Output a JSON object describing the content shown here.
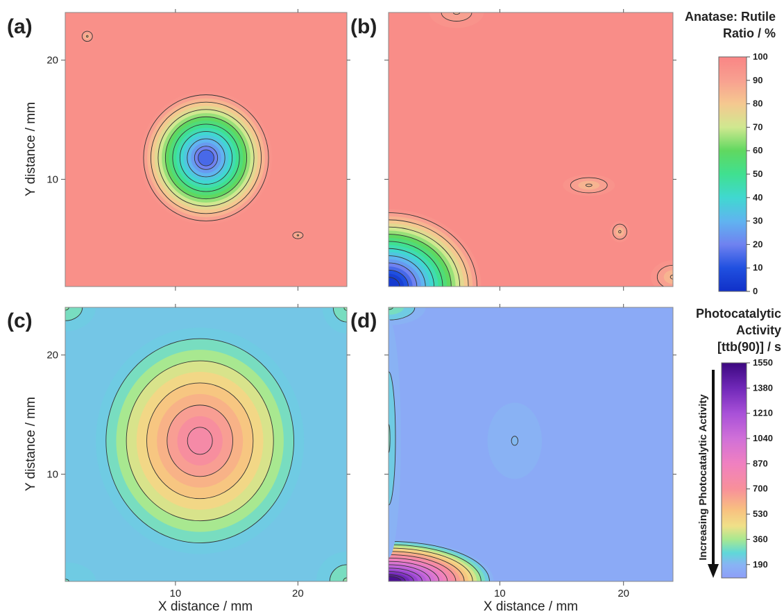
{
  "chart_data": [
    {
      "type": "heatmap",
      "panel": "(a)",
      "xlabel": "",
      "ylabel": "Y distance / mm",
      "xlim": [
        1,
        24
      ],
      "ylim": [
        1,
        24
      ],
      "x_ticks": [
        10,
        20
      ],
      "y_ticks": [
        10,
        20
      ],
      "scale": "anatase",
      "background_value": 96,
      "features": [
        {
          "cx": 12.5,
          "cy": 11.8,
          "rx": 5.4,
          "ry": 5.6,
          "min_value": 15
        },
        {
          "cx": 2.8,
          "cy": 22.0,
          "rx": 0.6,
          "ry": 0.6,
          "min_value": 82
        },
        {
          "cx": 20.0,
          "cy": 5.3,
          "rx": 0.6,
          "ry": 0.4,
          "min_value": 84
        }
      ]
    },
    {
      "type": "heatmap",
      "panel": "(b)",
      "xlabel": "",
      "ylabel": "",
      "xlim": [
        1,
        24
      ],
      "ylim": [
        1,
        24
      ],
      "x_ticks": [
        10,
        20
      ],
      "y_ticks": [
        10,
        20
      ],
      "scale": "anatase",
      "background_value": 97,
      "features": [
        {
          "cx": 1.0,
          "cy": 1.0,
          "rx": 7.5,
          "ry": 6.5,
          "min_value": 3
        },
        {
          "cx": 17.2,
          "cy": 9.5,
          "rx": 2.1,
          "ry": 0.9,
          "min_value": 84
        },
        {
          "cx": 6.5,
          "cy": 24.0,
          "rx": 2.2,
          "ry": 1.3,
          "min_value": 85
        },
        {
          "cx": 19.7,
          "cy": 5.6,
          "rx": 0.8,
          "ry": 0.9,
          "min_value": 84
        },
        {
          "cx": 24.0,
          "cy": 1.8,
          "rx": 1.8,
          "ry": 1.4,
          "min_value": 84
        }
      ]
    },
    {
      "type": "heatmap",
      "panel": "(c)",
      "xlabel": "X distance / mm",
      "ylabel": "Y distance / mm",
      "xlim": [
        1,
        24
      ],
      "ylim": [
        1,
        24
      ],
      "x_ticks": [
        10,
        20
      ],
      "y_ticks": [
        10,
        20
      ],
      "scale": "activity",
      "background_value": 230,
      "features": [
        {
          "cx": 12.0,
          "cy": 12.8,
          "rx": 8.5,
          "ry": 9.5,
          "peak_value": 760
        },
        {
          "cx": 1.0,
          "cy": 24.0,
          "rx": 2.5,
          "ry": 2.0,
          "peak_value": 330
        },
        {
          "cx": 24.0,
          "cy": 24.0,
          "rx": 2.0,
          "ry": 2.2,
          "peak_value": 330
        },
        {
          "cx": 24.0,
          "cy": 1.0,
          "rx": 2.5,
          "ry": 2.5,
          "peak_value": 330
        },
        {
          "cx": 1.0,
          "cy": 1.0,
          "rx": 2.5,
          "ry": 1.6,
          "peak_value": 300
        }
      ]
    },
    {
      "type": "heatmap",
      "panel": "(d)",
      "xlabel": "X distance / mm",
      "ylabel": "",
      "xlim": [
        1,
        24
      ],
      "ylim": [
        1,
        24
      ],
      "x_ticks": [
        10,
        20
      ],
      "y_ticks": [
        10,
        20
      ],
      "scale": "activity",
      "background_value": 150,
      "features": [
        {
          "cx": 1.0,
          "cy": 1.0,
          "rx": 8.5,
          "ry": 3.5,
          "peak_value": 1500
        },
        {
          "cx": 1.0,
          "cy": 24.0,
          "rx": 3.0,
          "ry": 1.5,
          "peak_value": 320
        },
        {
          "cx": 1.0,
          "cy": 13.0,
          "rx": 1.0,
          "ry": 10.0,
          "peak_value": 300
        },
        {
          "cx": 11.2,
          "cy": 12.8,
          "rx": 2.2,
          "ry": 3.2,
          "peak_value": 200
        }
      ]
    }
  ],
  "colorbars": {
    "anatase": {
      "title": [
        "Anatase: Rutile",
        "Ratio / %"
      ],
      "ticks": [
        100,
        90,
        80,
        70,
        60,
        50,
        40,
        30,
        20,
        10,
        0
      ],
      "range": [
        0,
        100
      ],
      "stops": [
        {
          "v": 0,
          "color": "#1030c8"
        },
        {
          "v": 10,
          "color": "#2050e0"
        },
        {
          "v": 20,
          "color": "#6f82f0"
        },
        {
          "v": 30,
          "color": "#60b4f0"
        },
        {
          "v": 40,
          "color": "#40d8d0"
        },
        {
          "v": 50,
          "color": "#40e090"
        },
        {
          "v": 60,
          "color": "#60d860"
        },
        {
          "v": 70,
          "color": "#d0e890"
        },
        {
          "v": 80,
          "color": "#f5c890"
        },
        {
          "v": 90,
          "color": "#f8a090"
        },
        {
          "v": 100,
          "color": "#f98585"
        }
      ]
    },
    "activity": {
      "title": [
        "Photocatalytic",
        "Activity",
        "[ttb(90)] / s"
      ],
      "ticks": [
        1550,
        1380,
        1210,
        1040,
        870,
        700,
        530,
        360,
        190
      ],
      "range": [
        100,
        1550
      ],
      "arrow_label": "Increasing Photocatalytic Activity",
      "stops": [
        {
          "v": 100,
          "color": "#8e9ef8"
        },
        {
          "v": 190,
          "color": "#88b4f4"
        },
        {
          "v": 270,
          "color": "#60d8d8"
        },
        {
          "v": 360,
          "color": "#a8e890"
        },
        {
          "v": 450,
          "color": "#f0e088"
        },
        {
          "v": 560,
          "color": "#f8c080"
        },
        {
          "v": 700,
          "color": "#f8909a"
        },
        {
          "v": 870,
          "color": "#f080c0"
        },
        {
          "v": 1040,
          "color": "#d070d8"
        },
        {
          "v": 1210,
          "color": "#a850d8"
        },
        {
          "v": 1380,
          "color": "#7028b8"
        },
        {
          "v": 1550,
          "color": "#3c0880"
        }
      ]
    }
  }
}
